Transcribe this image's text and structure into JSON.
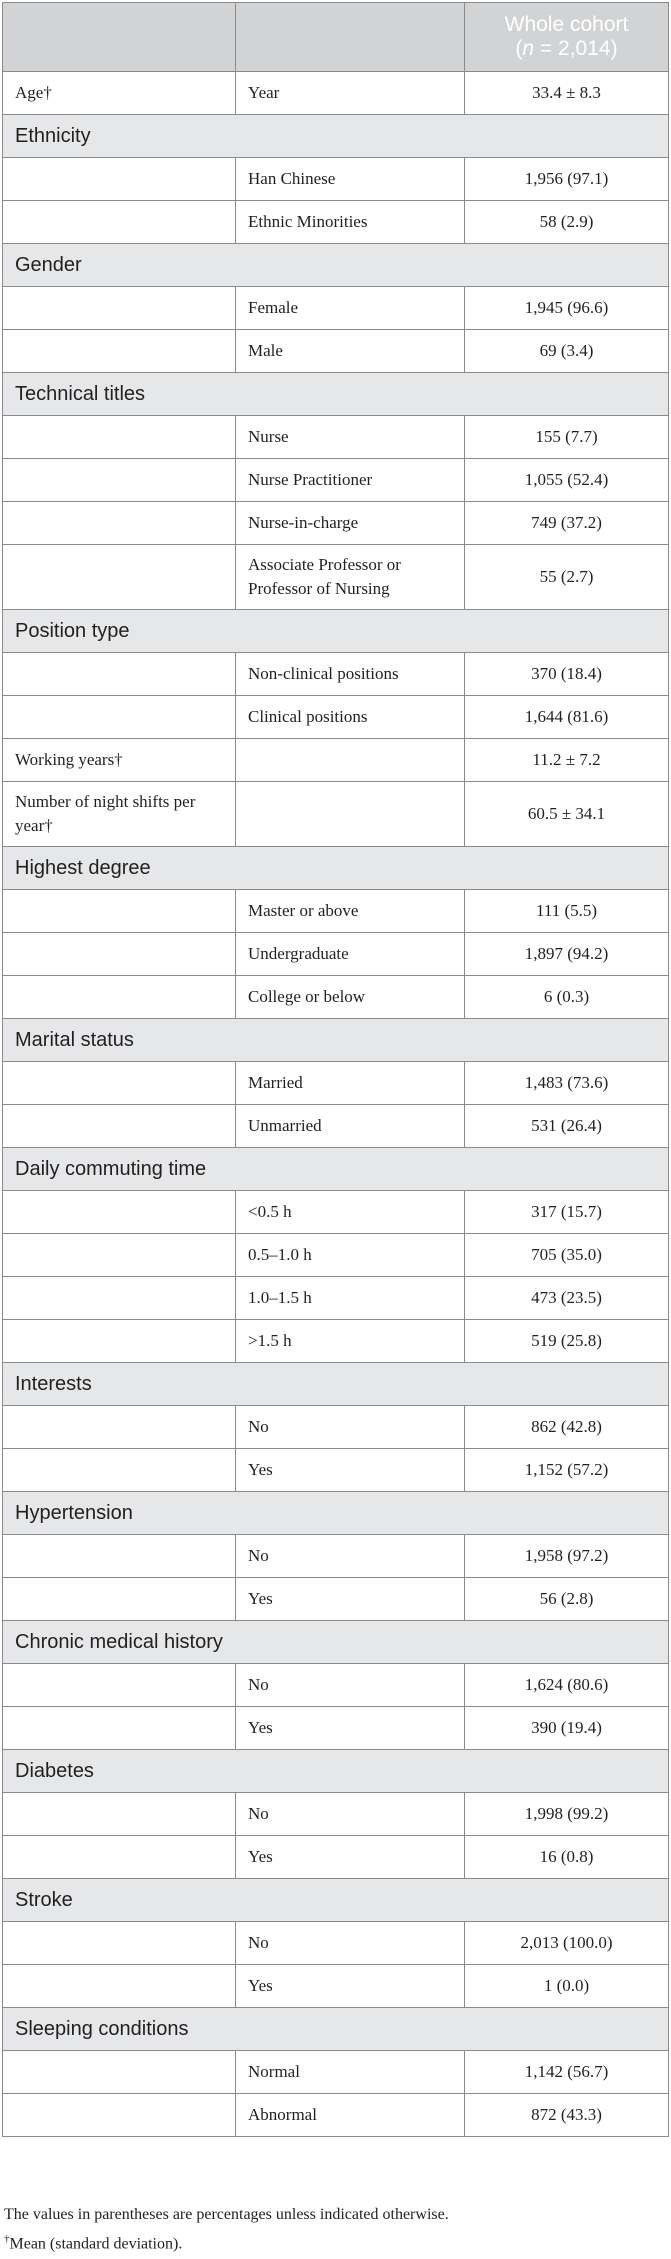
{
  "header": {
    "col3_line1": "Whole cohort",
    "n_label": "n",
    "n_value": " = 2,014)"
  },
  "sections": [
    {
      "type": "row",
      "label": "Age†",
      "sub": "Year",
      "value": "33.4 ± 8.3"
    },
    {
      "type": "cat",
      "label": "Ethnicity"
    },
    {
      "type": "row",
      "label": "",
      "sub": "Han Chinese",
      "value": "1,956 (97.1)"
    },
    {
      "type": "row",
      "label": "",
      "sub": "Ethnic Minorities",
      "value": "58 (2.9)"
    },
    {
      "type": "cat",
      "label": "Gender"
    },
    {
      "type": "row",
      "label": "",
      "sub": "Female",
      "value": "1,945 (96.6)"
    },
    {
      "type": "row",
      "label": "",
      "sub": "Male",
      "value": "69 (3.4)"
    },
    {
      "type": "cat",
      "label": "Technical titles"
    },
    {
      "type": "row",
      "label": "",
      "sub": "Nurse",
      "value": "155 (7.7)"
    },
    {
      "type": "row",
      "label": "",
      "sub": "Nurse Practitioner",
      "value": "1,055 (52.4)"
    },
    {
      "type": "row",
      "label": "",
      "sub": "Nurse-in-charge",
      "value": "749 (37.2)"
    },
    {
      "type": "row",
      "label": "",
      "sub": "Associate Professor or Professor of Nursing",
      "value": "55 (2.7)",
      "tall": true
    },
    {
      "type": "cat",
      "label": "Position type"
    },
    {
      "type": "row",
      "label": "",
      "sub": "Non-clinical positions",
      "value": "370 (18.4)"
    },
    {
      "type": "row",
      "label": "",
      "sub": "Clinical positions",
      "value": "1,644 (81.6)"
    },
    {
      "type": "row",
      "label": "Working years†",
      "sub": "",
      "value": "11.2 ± 7.2"
    },
    {
      "type": "row",
      "label": "Number of night shifts per year†",
      "sub": "",
      "value": "60.5 ± 34.1",
      "tall": true
    },
    {
      "type": "cat",
      "label": "Highest degree"
    },
    {
      "type": "row",
      "label": "",
      "sub": "Master or above",
      "value": "111 (5.5)"
    },
    {
      "type": "row",
      "label": "",
      "sub": "Undergraduate",
      "value": "1,897 (94.2)"
    },
    {
      "type": "row",
      "label": "",
      "sub": "College or below",
      "value": "6 (0.3)"
    },
    {
      "type": "cat",
      "label": "Marital status"
    },
    {
      "type": "row",
      "label": "",
      "sub": "Married",
      "value": "1,483 (73.6)"
    },
    {
      "type": "row",
      "label": "",
      "sub": "Unmarried",
      "value": "531 (26.4)"
    },
    {
      "type": "cat",
      "label": "Daily commuting time"
    },
    {
      "type": "row",
      "label": "",
      "sub": "<0.5 h",
      "value": "317 (15.7)"
    },
    {
      "type": "row",
      "label": "",
      "sub": "0.5–1.0 h",
      "value": "705 (35.0)"
    },
    {
      "type": "row",
      "label": "",
      "sub": "1.0–1.5 h",
      "value": "473 (23.5)"
    },
    {
      "type": "row",
      "label": "",
      "sub": ">1.5 h",
      "value": "519 (25.8)"
    },
    {
      "type": "cat",
      "label": "Interests"
    },
    {
      "type": "row",
      "label": "",
      "sub": "No",
      "value": "862 (42.8)"
    },
    {
      "type": "row",
      "label": "",
      "sub": "Yes",
      "value": "1,152 (57.2)"
    },
    {
      "type": "cat",
      "label": "Hypertension"
    },
    {
      "type": "row",
      "label": "",
      "sub": "No",
      "value": "1,958 (97.2)"
    },
    {
      "type": "row",
      "label": "",
      "sub": "Yes",
      "value": "56 (2.8)"
    },
    {
      "type": "cat",
      "label": "Chronic medical history"
    },
    {
      "type": "row",
      "label": "",
      "sub": "No",
      "value": "1,624 (80.6)"
    },
    {
      "type": "row",
      "label": "",
      "sub": "Yes",
      "value": "390 (19.4)"
    },
    {
      "type": "cat",
      "label": "Diabetes"
    },
    {
      "type": "row",
      "label": "",
      "sub": "No",
      "value": "1,998 (99.2)"
    },
    {
      "type": "row",
      "label": "",
      "sub": "Yes",
      "value": "16 (0.8)"
    },
    {
      "type": "cat",
      "label": "Stroke"
    },
    {
      "type": "row",
      "label": "",
      "sub": "No",
      "value": "2,013 (100.0)"
    },
    {
      "type": "row",
      "label": "",
      "sub": "Yes",
      "value": "1 (0.0)"
    },
    {
      "type": "cat",
      "label": "Sleeping conditions"
    },
    {
      "type": "row",
      "label": "",
      "sub": "Normal",
      "value": "1,142 (56.7)"
    },
    {
      "type": "row",
      "label": "",
      "sub": "Abnormal",
      "value": "872 (43.3)"
    }
  ],
  "notes": {
    "line1": "The values in parentheses are percentages unless indicated otherwise.",
    "dagger": "†",
    "line2": "Mean (standard deviation)."
  }
}
